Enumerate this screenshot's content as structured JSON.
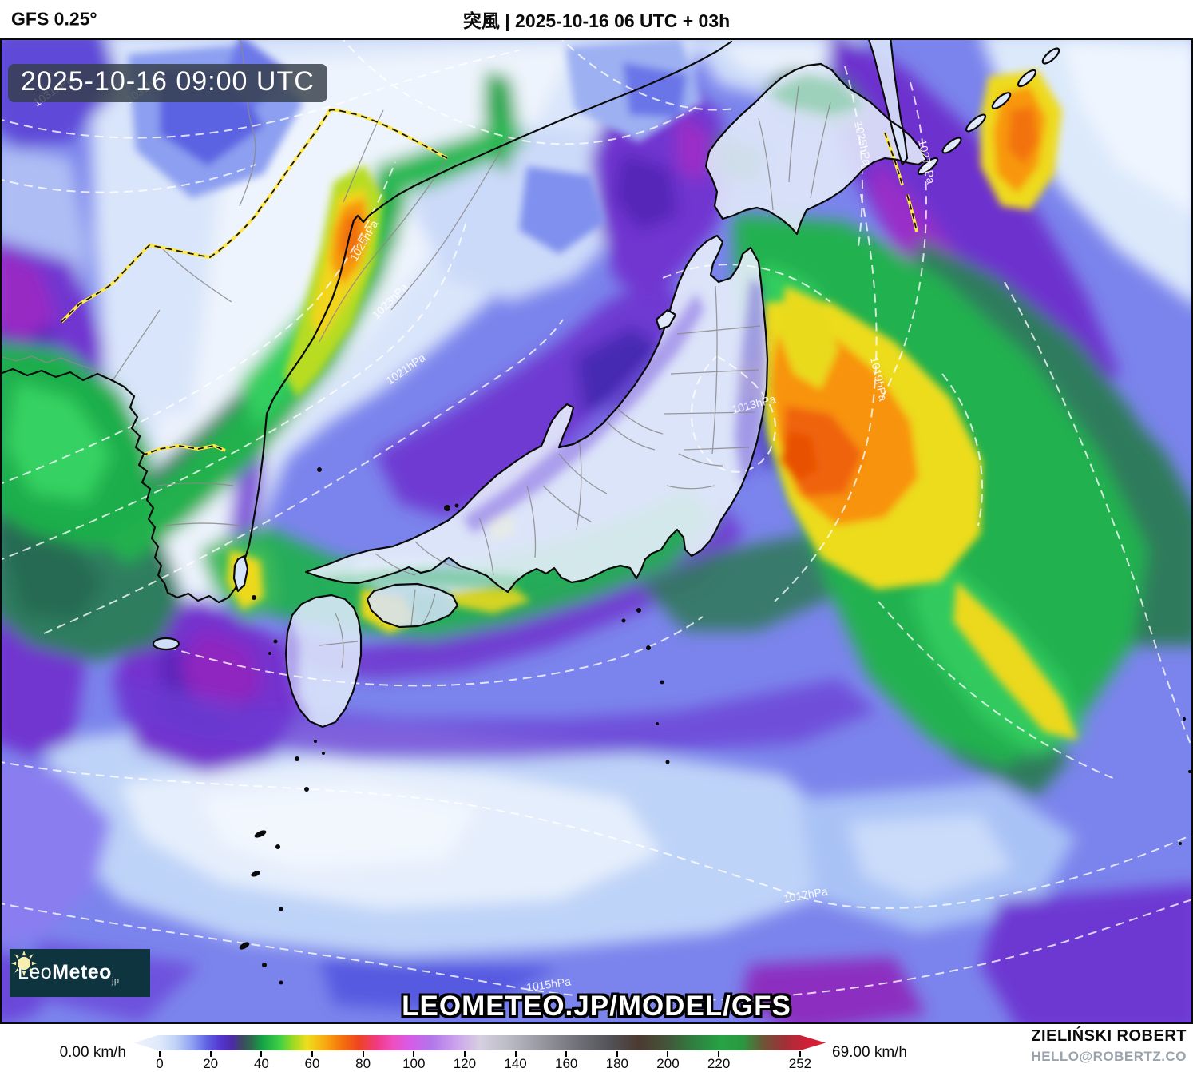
{
  "header": {
    "model_label": "GFS 0.25°",
    "title": "突風 | 2025-10-16 06 UTC + 03h"
  },
  "map": {
    "timestamp": "2025-10-16 09:00 UTC",
    "watermark": "LEOMETEO.JP/MODEL/GFS",
    "logo": {
      "part1": "Leo",
      "part2": "Meteo",
      "suffix": "jp"
    },
    "isobars": [
      {
        "t": "1031hPa"
      },
      {
        "t": "1031hPa"
      },
      {
        "t": "1025hPa"
      },
      {
        "t": "1023hPa"
      },
      {
        "t": "1021hPa"
      },
      {
        "t": "1013hPa"
      },
      {
        "t": "1019hPa"
      },
      {
        "t": "1025hPa"
      },
      {
        "t": "1027hPa"
      },
      {
        "t": "1017hPa"
      },
      {
        "t": "1015hPa"
      }
    ]
  },
  "footer": {
    "min_label": "0.00 km/h",
    "max_label": "69.00 km/h",
    "author": "ZIELIŃSKI ROBERT",
    "contact": "HELLO@ROBERTZ.CO",
    "colorbar": {
      "unit": "km/h",
      "value_min": 0,
      "value_max": 252,
      "ticks": [
        "0",
        "20",
        "40",
        "60",
        "80",
        "100",
        "120",
        "140",
        "160",
        "180",
        "200",
        "220",
        "252"
      ],
      "body_start_pct": 3.7,
      "body_span_pct": 92.6,
      "stops": [
        {
          "p": 0,
          "c": "#eef3fc"
        },
        {
          "p": 3.7,
          "c": "#dfe9fa"
        },
        {
          "p": 6,
          "c": "#c0d2f6"
        },
        {
          "p": 8.5,
          "c": "#8c9ef1"
        },
        {
          "p": 10.5,
          "c": "#5f63e3"
        },
        {
          "p": 12.5,
          "c": "#5336cf"
        },
        {
          "p": 14.2,
          "c": "#4c2ba8"
        },
        {
          "p": 15.6,
          "c": "#3d4a62"
        },
        {
          "p": 17,
          "c": "#2e6b4e"
        },
        {
          "p": 18.5,
          "c": "#15a346"
        },
        {
          "p": 21,
          "c": "#3ecf47"
        },
        {
          "p": 23,
          "c": "#9cda23"
        },
        {
          "p": 25,
          "c": "#eede1d"
        },
        {
          "p": 27.5,
          "c": "#f8ac12"
        },
        {
          "p": 30,
          "c": "#f4720c"
        },
        {
          "p": 32.5,
          "c": "#ee4422"
        },
        {
          "p": 35,
          "c": "#f03a80"
        },
        {
          "p": 37.5,
          "c": "#ee4fc2"
        },
        {
          "p": 40,
          "c": "#d55ce8"
        },
        {
          "p": 43,
          "c": "#b276ea"
        },
        {
          "p": 46.5,
          "c": "#cba2ee"
        },
        {
          "p": 50,
          "c": "#d6d0e0"
        },
        {
          "p": 54,
          "c": "#bcbcc6"
        },
        {
          "p": 59,
          "c": "#97979f"
        },
        {
          "p": 64,
          "c": "#717179"
        },
        {
          "p": 69,
          "c": "#515157"
        },
        {
          "p": 73,
          "c": "#4c3a30"
        },
        {
          "p": 77,
          "c": "#44543a"
        },
        {
          "p": 81,
          "c": "#2f8040"
        },
        {
          "p": 85,
          "c": "#27a344"
        },
        {
          "p": 88,
          "c": "#2b9840"
        },
        {
          "p": 91,
          "c": "#6d5436"
        },
        {
          "p": 94,
          "c": "#a03038"
        },
        {
          "p": 97,
          "c": "#cc2138"
        },
        {
          "p": 100,
          "c": "#dd1f36"
        }
      ]
    }
  }
}
